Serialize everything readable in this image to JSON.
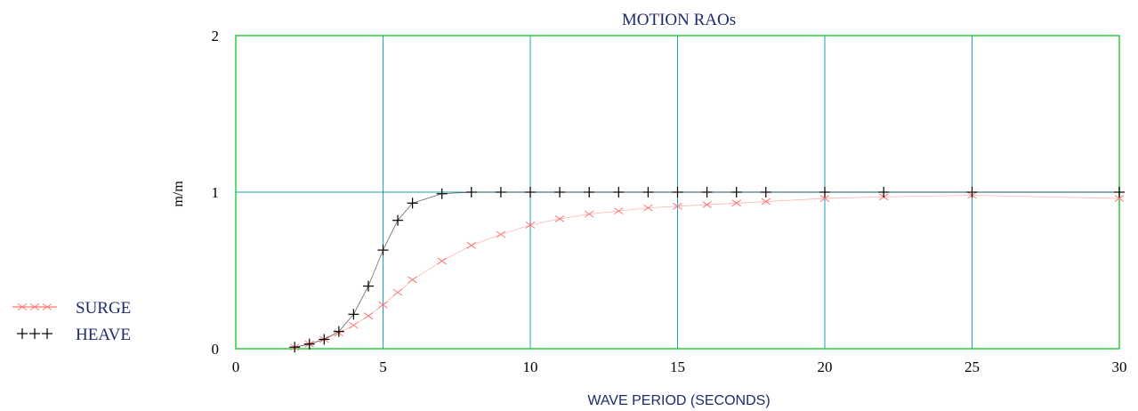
{
  "chart_data": {
    "type": "line",
    "title": "MOTION RAOs",
    "xlabel": "WAVE PERIOD (SECONDS)",
    "ylabel": "m/m",
    "xlim": [
      0,
      30
    ],
    "ylim": [
      0,
      2
    ],
    "xticks": [
      "0",
      "5",
      "10",
      "15",
      "20",
      "25",
      "30"
    ],
    "yticks": [
      "0",
      "1",
      "2"
    ],
    "grid": true,
    "legend_position": "bottom-left",
    "colors": {
      "frame": "#2ecc40",
      "grid": "#1e9fc2",
      "surge": "#ff7777",
      "heave": "#000000",
      "text": "#1f2a6b"
    },
    "series": [
      {
        "name": "SURGE",
        "marker": "x",
        "x": [
          2,
          2.5,
          3,
          3.5,
          4,
          4.5,
          5,
          5.5,
          6,
          7,
          8,
          9,
          10,
          11,
          12,
          13,
          14,
          15,
          16,
          17,
          18,
          20,
          22,
          25,
          30
        ],
        "y": [
          0.01,
          0.03,
          0.06,
          0.1,
          0.15,
          0.21,
          0.28,
          0.36,
          0.44,
          0.56,
          0.66,
          0.73,
          0.79,
          0.83,
          0.86,
          0.88,
          0.9,
          0.91,
          0.92,
          0.93,
          0.94,
          0.96,
          0.97,
          0.98,
          0.96
        ]
      },
      {
        "name": "HEAVE",
        "marker": "+",
        "x": [
          2,
          2.5,
          3,
          3.5,
          4,
          4.5,
          5,
          5.5,
          6,
          7,
          8,
          9,
          10,
          11,
          12,
          13,
          14,
          15,
          16,
          17,
          18,
          20,
          22,
          25,
          30
        ],
        "y": [
          0.01,
          0.03,
          0.06,
          0.11,
          0.22,
          0.4,
          0.63,
          0.82,
          0.93,
          0.99,
          1.0,
          1.0,
          1.0,
          1.0,
          1.0,
          1.0,
          1.0,
          1.0,
          1.0,
          1.0,
          1.0,
          1.0,
          1.0,
          1.0,
          1.0
        ]
      }
    ]
  }
}
